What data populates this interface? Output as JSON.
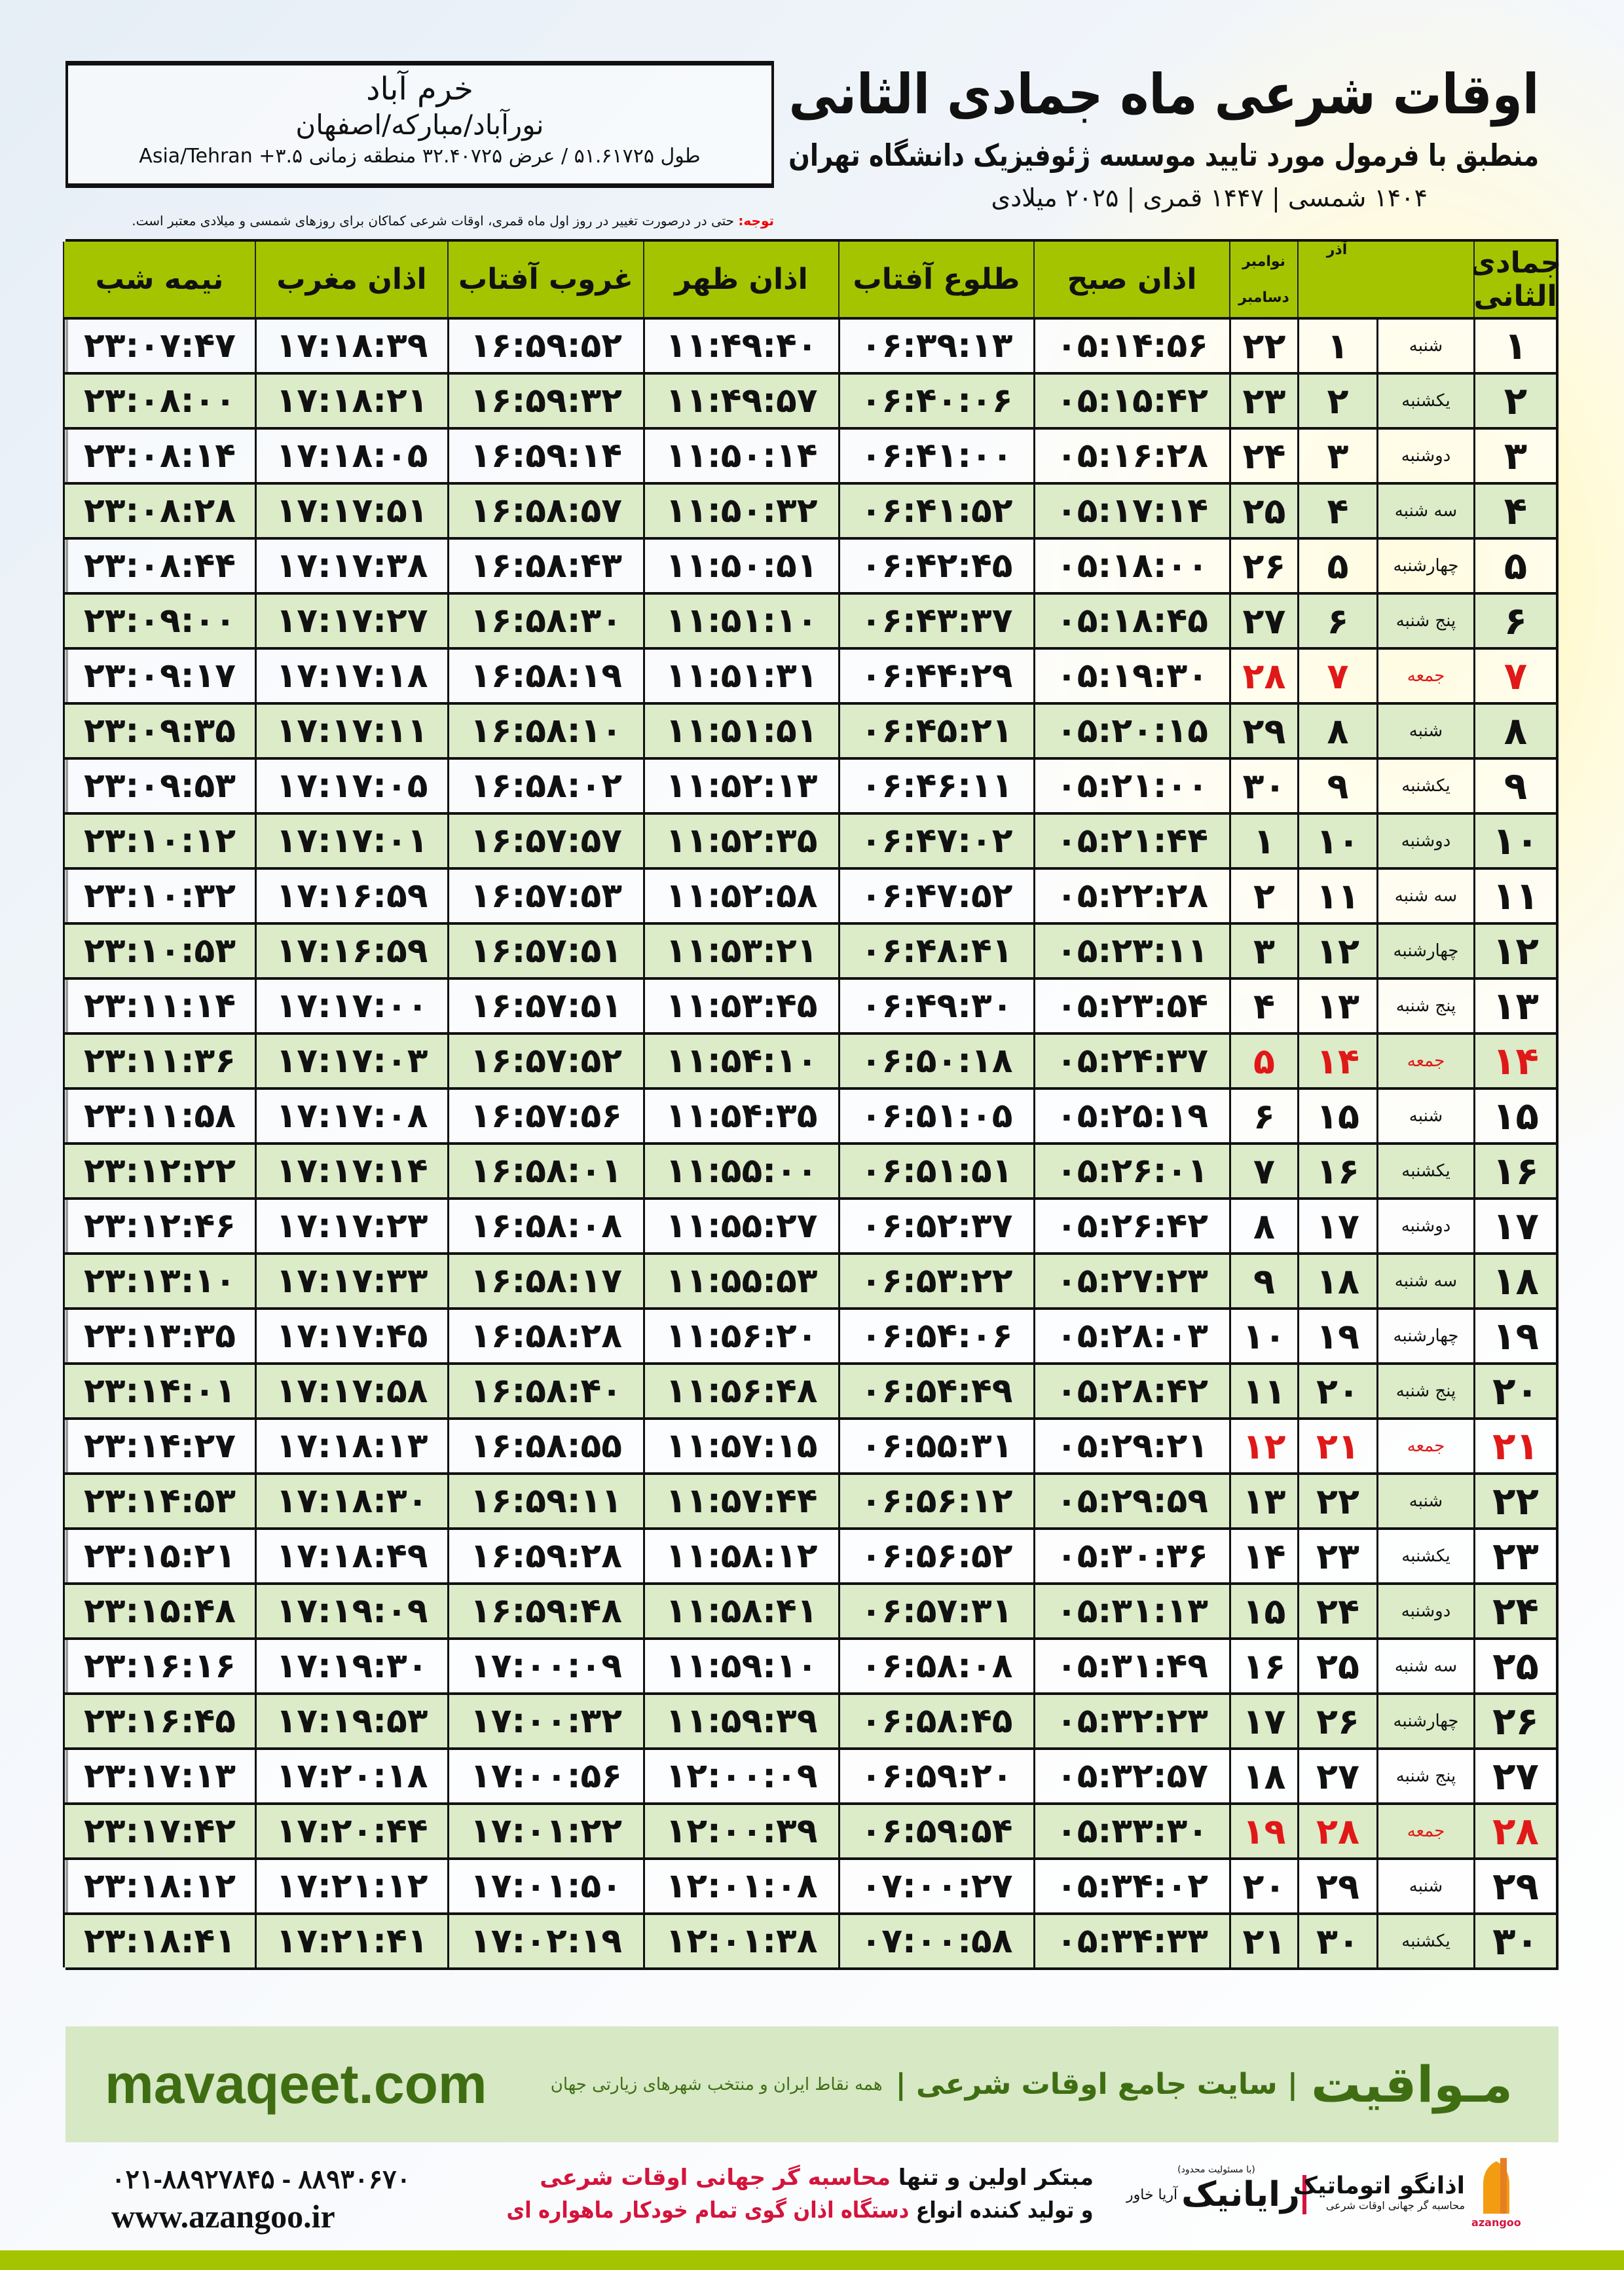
{
  "header": {
    "title": "اوقات شرعی ماه جمادی الثانی",
    "subtitle": "منطبق با فرمول مورد تایید موسسه ژئوفیزیک دانشگاه تهران",
    "years": "۱۴۰۴ شمسی | ۱۴۴۷ قمری | ۲۰۲۵ میلادی"
  },
  "location": {
    "city": "خرم آباد",
    "alt_names": "نورآباد/مبارکه/اصفهان",
    "coords": "طول ۵۱.۶۱۷۲۵ / عرض ۳۲.۴۰۷۲۵ منطقه زمانی ۳.۵+ Asia/Tehran"
  },
  "note": {
    "label": "توجه:",
    "text": " حتی در درصورت تغییر در روز اول ماه قمری، اوقات شرعی کماکان برای روزهای شمسی و میلادی معتبر است."
  },
  "columns": {
    "hijri": "جمادی الثانی",
    "azar": "آذر",
    "nov": "نوامبر",
    "dec": "دسامبر",
    "fajr": "اذان صبح",
    "sunrise": "طلوع آفتاب",
    "dhuhr": "اذان ظهر",
    "sunset": "غروب آفتاب",
    "maghrib": "اذان مغرب",
    "midnight": "نیمه شب"
  },
  "colors": {
    "header_green": "#a5c400",
    "row_green": "#dcebc8",
    "friday_red": "#e01818"
  },
  "rows": [
    [
      "۱",
      "شنبه",
      "۱",
      "۲۲",
      "۰۵:۱۴:۵۶",
      "۰۶:۳۹:۱۳",
      "۱۱:۴۹:۴۰",
      "۱۶:۵۹:۵۲",
      "۱۷:۱۸:۳۹",
      "۲۳:۰۷:۴۷"
    ],
    [
      "۲",
      "یکشنبه",
      "۲",
      "۲۳",
      "۰۵:۱۵:۴۲",
      "۰۶:۴۰:۰۶",
      "۱۱:۴۹:۵۷",
      "۱۶:۵۹:۳۲",
      "۱۷:۱۸:۲۱",
      "۲۳:۰۸:۰۰"
    ],
    [
      "۳",
      "دوشنبه",
      "۳",
      "۲۴",
      "۰۵:۱۶:۲۸",
      "۰۶:۴۱:۰۰",
      "۱۱:۵۰:۱۴",
      "۱۶:۵۹:۱۴",
      "۱۷:۱۸:۰۵",
      "۲۳:۰۸:۱۴"
    ],
    [
      "۴",
      "سه شنبه",
      "۴",
      "۲۵",
      "۰۵:۱۷:۱۴",
      "۰۶:۴۱:۵۲",
      "۱۱:۵۰:۳۲",
      "۱۶:۵۸:۵۷",
      "۱۷:۱۷:۵۱",
      "۲۳:۰۸:۲۸"
    ],
    [
      "۵",
      "چهارشنبه",
      "۵",
      "۲۶",
      "۰۵:۱۸:۰۰",
      "۰۶:۴۲:۴۵",
      "۱۱:۵۰:۵۱",
      "۱۶:۵۸:۴۳",
      "۱۷:۱۷:۳۸",
      "۲۳:۰۸:۴۴"
    ],
    [
      "۶",
      "پنج شنبه",
      "۶",
      "۲۷",
      "۰۵:۱۸:۴۵",
      "۰۶:۴۳:۳۷",
      "۱۱:۵۱:۱۰",
      "۱۶:۵۸:۳۰",
      "۱۷:۱۷:۲۷",
      "۲۳:۰۹:۰۰"
    ],
    [
      "۷",
      "جمعه",
      "۷",
      "۲۸",
      "۰۵:۱۹:۳۰",
      "۰۶:۴۴:۲۹",
      "۱۱:۵۱:۳۱",
      "۱۶:۵۸:۱۹",
      "۱۷:۱۷:۱۸",
      "۲۳:۰۹:۱۷"
    ],
    [
      "۸",
      "شنبه",
      "۸",
      "۲۹",
      "۰۵:۲۰:۱۵",
      "۰۶:۴۵:۲۱",
      "۱۱:۵۱:۵۱",
      "۱۶:۵۸:۱۰",
      "۱۷:۱۷:۱۱",
      "۲۳:۰۹:۳۵"
    ],
    [
      "۹",
      "یکشنبه",
      "۹",
      "۳۰",
      "۰۵:۲۱:۰۰",
      "۰۶:۴۶:۱۱",
      "۱۱:۵۲:۱۳",
      "۱۶:۵۸:۰۲",
      "۱۷:۱۷:۰۵",
      "۲۳:۰۹:۵۳"
    ],
    [
      "۱۰",
      "دوشنبه",
      "۱۰",
      "۱",
      "۰۵:۲۱:۴۴",
      "۰۶:۴۷:۰۲",
      "۱۱:۵۲:۳۵",
      "۱۶:۵۷:۵۷",
      "۱۷:۱۷:۰۱",
      "۲۳:۱۰:۱۲"
    ],
    [
      "۱۱",
      "سه شنبه",
      "۱۱",
      "۲",
      "۰۵:۲۲:۲۸",
      "۰۶:۴۷:۵۲",
      "۱۱:۵۲:۵۸",
      "۱۶:۵۷:۵۳",
      "۱۷:۱۶:۵۹",
      "۲۳:۱۰:۳۲"
    ],
    [
      "۱۲",
      "چهارشنبه",
      "۱۲",
      "۳",
      "۰۵:۲۳:۱۱",
      "۰۶:۴۸:۴۱",
      "۱۱:۵۳:۲۱",
      "۱۶:۵۷:۵۱",
      "۱۷:۱۶:۵۹",
      "۲۳:۱۰:۵۳"
    ],
    [
      "۱۳",
      "پنج شنبه",
      "۱۳",
      "۴",
      "۰۵:۲۳:۵۴",
      "۰۶:۴۹:۳۰",
      "۱۱:۵۳:۴۵",
      "۱۶:۵۷:۵۱",
      "۱۷:۱۷:۰۰",
      "۲۳:۱۱:۱۴"
    ],
    [
      "۱۴",
      "جمعه",
      "۱۴",
      "۵",
      "۰۵:۲۴:۳۷",
      "۰۶:۵۰:۱۸",
      "۱۱:۵۴:۱۰",
      "۱۶:۵۷:۵۲",
      "۱۷:۱۷:۰۳",
      "۲۳:۱۱:۳۶"
    ],
    [
      "۱۵",
      "شنبه",
      "۱۵",
      "۶",
      "۰۵:۲۵:۱۹",
      "۰۶:۵۱:۰۵",
      "۱۱:۵۴:۳۵",
      "۱۶:۵۷:۵۶",
      "۱۷:۱۷:۰۸",
      "۲۳:۱۱:۵۸"
    ],
    [
      "۱۶",
      "یکشنبه",
      "۱۶",
      "۷",
      "۰۵:۲۶:۰۱",
      "۰۶:۵۱:۵۱",
      "۱۱:۵۵:۰۰",
      "۱۶:۵۸:۰۱",
      "۱۷:۱۷:۱۴",
      "۲۳:۱۲:۲۲"
    ],
    [
      "۱۷",
      "دوشنبه",
      "۱۷",
      "۸",
      "۰۵:۲۶:۴۲",
      "۰۶:۵۲:۳۷",
      "۱۱:۵۵:۲۷",
      "۱۶:۵۸:۰۸",
      "۱۷:۱۷:۲۳",
      "۲۳:۱۲:۴۶"
    ],
    [
      "۱۸",
      "سه شنبه",
      "۱۸",
      "۹",
      "۰۵:۲۷:۲۳",
      "۰۶:۵۳:۲۲",
      "۱۱:۵۵:۵۳",
      "۱۶:۵۸:۱۷",
      "۱۷:۱۷:۳۳",
      "۲۳:۱۳:۱۰"
    ],
    [
      "۱۹",
      "چهارشنبه",
      "۱۹",
      "۱۰",
      "۰۵:۲۸:۰۳",
      "۰۶:۵۴:۰۶",
      "۱۱:۵۶:۲۰",
      "۱۶:۵۸:۲۸",
      "۱۷:۱۷:۴۵",
      "۲۳:۱۳:۳۵"
    ],
    [
      "۲۰",
      "پنج شنبه",
      "۲۰",
      "۱۱",
      "۰۵:۲۸:۴۲",
      "۰۶:۵۴:۴۹",
      "۱۱:۵۶:۴۸",
      "۱۶:۵۸:۴۰",
      "۱۷:۱۷:۵۸",
      "۲۳:۱۴:۰۱"
    ],
    [
      "۲۱",
      "جمعه",
      "۲۱",
      "۱۲",
      "۰۵:۲۹:۲۱",
      "۰۶:۵۵:۳۱",
      "۱۱:۵۷:۱۵",
      "۱۶:۵۸:۵۵",
      "۱۷:۱۸:۱۳",
      "۲۳:۱۴:۲۷"
    ],
    [
      "۲۲",
      "شنبه",
      "۲۲",
      "۱۳",
      "۰۵:۲۹:۵۹",
      "۰۶:۵۶:۱۲",
      "۱۱:۵۷:۴۴",
      "۱۶:۵۹:۱۱",
      "۱۷:۱۸:۳۰",
      "۲۳:۱۴:۵۳"
    ],
    [
      "۲۳",
      "یکشنبه",
      "۲۳",
      "۱۴",
      "۰۵:۳۰:۳۶",
      "۰۶:۵۶:۵۲",
      "۱۱:۵۸:۱۲",
      "۱۶:۵۹:۲۸",
      "۱۷:۱۸:۴۹",
      "۲۳:۱۵:۲۱"
    ],
    [
      "۲۴",
      "دوشنبه",
      "۲۴",
      "۱۵",
      "۰۵:۳۱:۱۳",
      "۰۶:۵۷:۳۱",
      "۱۱:۵۸:۴۱",
      "۱۶:۵۹:۴۸",
      "۱۷:۱۹:۰۹",
      "۲۳:۱۵:۴۸"
    ],
    [
      "۲۵",
      "سه شنبه",
      "۲۵",
      "۱۶",
      "۰۵:۳۱:۴۹",
      "۰۶:۵۸:۰۸",
      "۱۱:۵۹:۱۰",
      "۱۷:۰۰:۰۹",
      "۱۷:۱۹:۳۰",
      "۲۳:۱۶:۱۶"
    ],
    [
      "۲۶",
      "چهارشنبه",
      "۲۶",
      "۱۷",
      "۰۵:۳۲:۲۳",
      "۰۶:۵۸:۴۵",
      "۱۱:۵۹:۳۹",
      "۱۷:۰۰:۳۲",
      "۱۷:۱۹:۵۳",
      "۲۳:۱۶:۴۵"
    ],
    [
      "۲۷",
      "پنج شنبه",
      "۲۷",
      "۱۸",
      "۰۵:۳۲:۵۷",
      "۰۶:۵۹:۲۰",
      "۱۲:۰۰:۰۹",
      "۱۷:۰۰:۵۶",
      "۱۷:۲۰:۱۸",
      "۲۳:۱۷:۱۳"
    ],
    [
      "۲۸",
      "جمعه",
      "۲۸",
      "۱۹",
      "۰۵:۳۳:۳۰",
      "۰۶:۵۹:۵۴",
      "۱۲:۰۰:۳۹",
      "۱۷:۰۱:۲۲",
      "۱۷:۲۰:۴۴",
      "۲۳:۱۷:۴۲"
    ],
    [
      "۲۹",
      "شنبه",
      "۲۹",
      "۲۰",
      "۰۵:۳۴:۰۲",
      "۰۷:۰۰:۲۷",
      "۱۲:۰۱:۰۸",
      "۱۷:۰۱:۵۰",
      "۱۷:۲۱:۱۲",
      "۲۳:۱۸:۱۲"
    ],
    [
      "۳۰",
      "یکشنبه",
      "۳۰",
      "۲۱",
      "۰۵:۳۴:۳۳",
      "۰۷:۰۰:۵۸",
      "۱۲:۰۱:۳۸",
      "۱۷:۰۲:۱۹",
      "۱۷:۲۱:۴۱",
      "۲۳:۱۸:۴۱"
    ]
  ],
  "footer": {
    "brand": "مـواقیت",
    "slogan": "| سایت جامع اوقات شرعی |",
    "slogan2": "همه نقاط ایران و منتخب شهرهای زیارتی جهان",
    "site": "mavaqeet.com"
  },
  "ad": {
    "line1_a": "مبتکر اولین و تنها ",
    "line1_b": "محاسبه گر جهانی اوقات شرعی",
    "line2_a": "و تولید کننده انواع ",
    "line2_b": "دستگاه اذان گوی تمام خودکار ماهواره ای",
    "phones": "۰۲۱-۸۸۹۲۷۸۴۵ - ۸۸۹۳۰۶۷۰",
    "web": "www.azangoo.ir",
    "rayanic": "رایانیک",
    "rayanic_sub": "آریا خاور",
    "rayanic_note": "(با مسئولیت محدود)",
    "azangoo": "اذانگو اتوماتیک",
    "azangoo_sub": "محاسبه گر جهانی اوقات شرعی",
    "azangoo_latin": "azangoo"
  }
}
